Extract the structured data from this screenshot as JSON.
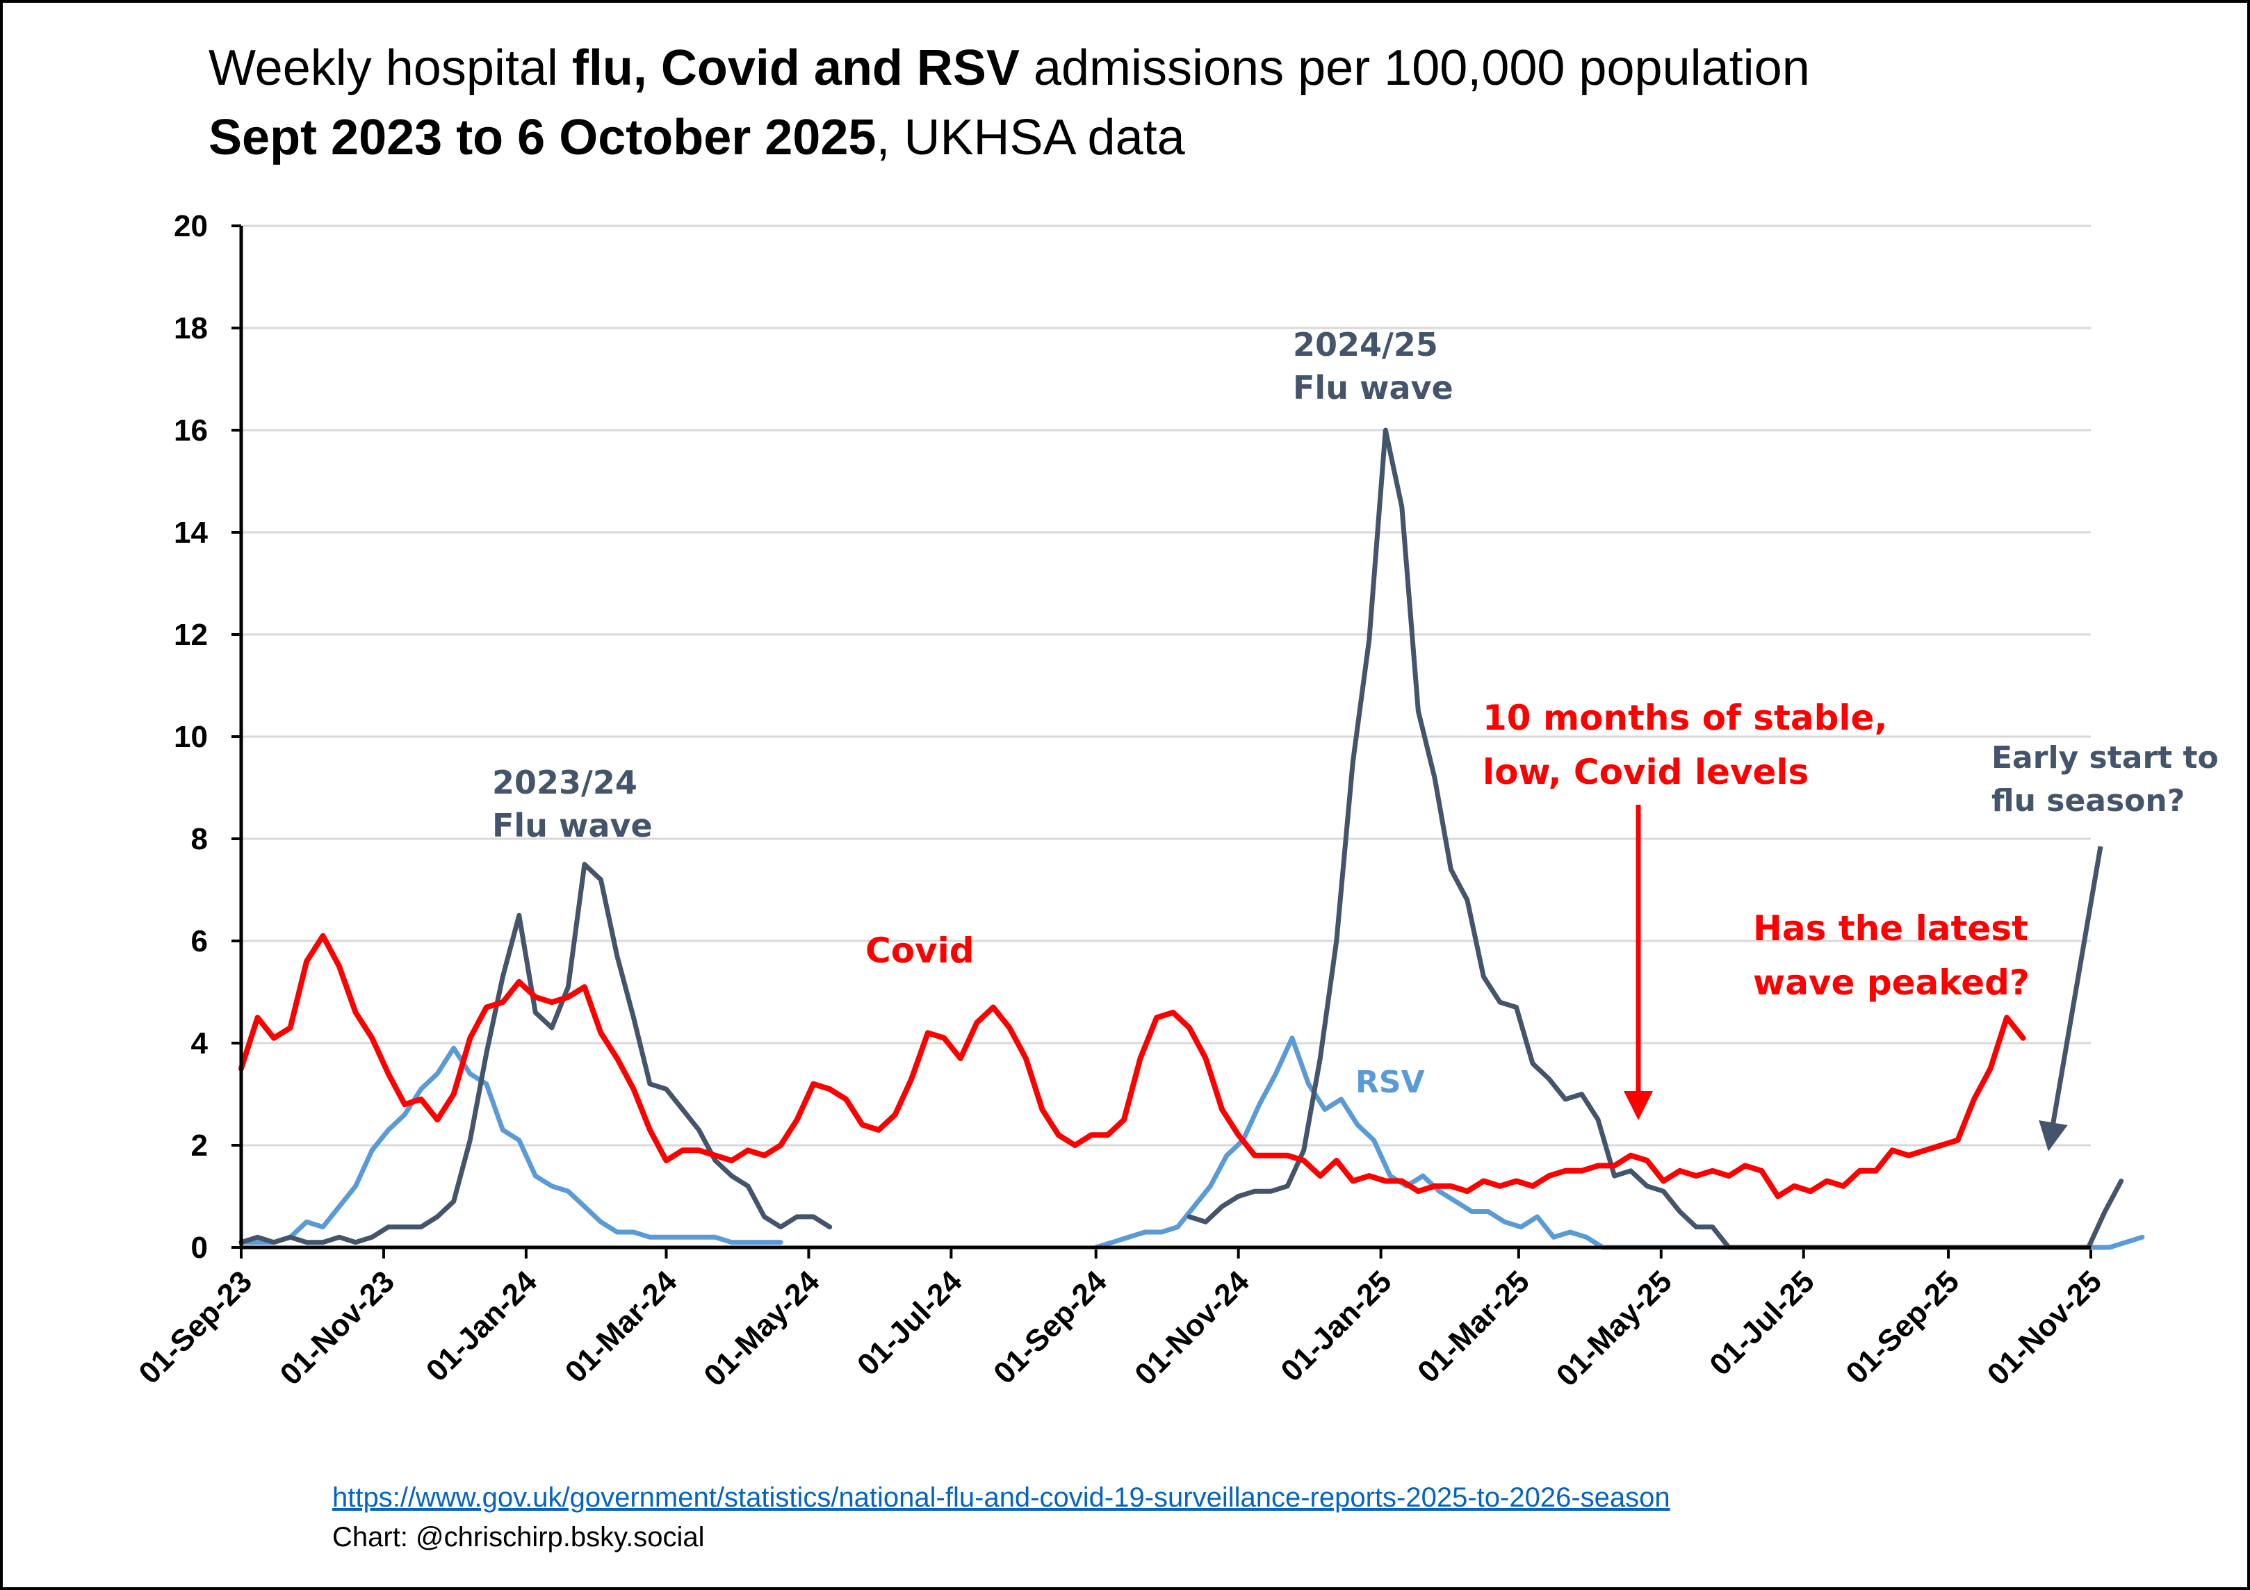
{
  "title": {
    "line1_a": "Weekly hospital ",
    "line1_b": "flu, Covid and RSV",
    "line1_c": " admissions per 100,000 population",
    "line2_a": "Sept 2023 to 6 October 2025",
    "line2_b": ", UKHSA data"
  },
  "source_url": "https://www.gov.uk/government/statistics/national-flu-and-covid-19-surveillance-reports-2025-to-2026-season",
  "credit": "Chart: @chrischirp.bsky.social",
  "colors": {
    "covid": "#ff0000",
    "flu": "#44546a",
    "rsv": "#5b9bd5",
    "grid": "#d9d9d9",
    "axis": "#000000"
  },
  "annotations": {
    "flu_2324": [
      "2023/24",
      "Flu wave"
    ],
    "flu_2425": [
      "2024/25",
      "Flu wave"
    ],
    "covid": "Covid",
    "rsv": "RSV",
    "stable": [
      "10 months of stable,",
      "low, Covid levels"
    ],
    "peaked": [
      "Has the latest",
      "wave peaked?"
    ],
    "early": [
      "Early start to",
      "flu season?"
    ]
  },
  "chart_data": {
    "type": "line",
    "x_axis": {
      "type": "date",
      "min": "2023-09-01",
      "max": "2025-11-01",
      "ticks": [
        "01-Sep-23",
        "01-Nov-23",
        "01-Jan-24",
        "01-Mar-24",
        "01-May-24",
        "01-Jul-24",
        "01-Sep-24",
        "01-Nov-24",
        "01-Jan-25",
        "01-Mar-25",
        "01-May-25",
        "01-Jul-25",
        "01-Sep-25",
        "01-Nov-25"
      ]
    },
    "y_axis": {
      "min": 0,
      "max": 20,
      "ticks": [
        0,
        2,
        4,
        6,
        8,
        10,
        12,
        14,
        16,
        18,
        20
      ],
      "grid": true
    },
    "series": [
      {
        "key": "covid",
        "start": "2023-09-01",
        "interval_days": 7,
        "values": [
          3.5,
          4.5,
          4.1,
          4.3,
          5.6,
          6.1,
          5.5,
          4.6,
          4.1,
          3.4,
          2.8,
          2.9,
          2.5,
          3.0,
          4.1,
          4.7,
          4.8,
          5.2,
          4.9,
          4.8,
          4.9,
          5.1,
          4.2,
          3.7,
          3.1,
          2.3,
          1.7,
          1.9,
          1.9,
          1.8,
          1.7,
          1.9,
          1.8,
          2.0,
          2.5,
          3.2,
          3.1,
          2.9,
          2.4,
          2.3,
          2.6,
          3.3,
          4.2,
          4.1,
          3.7,
          4.4,
          4.7,
          4.3,
          3.7,
          2.7,
          2.2,
          2.0,
          2.2,
          2.2,
          2.5,
          3.7,
          4.5,
          4.6,
          4.3,
          3.7,
          2.7,
          2.2,
          1.8,
          1.8,
          1.8,
          1.7,
          1.4,
          1.7,
          1.3,
          1.4,
          1.3,
          1.3,
          1.1,
          1.2,
          1.2,
          1.1,
          1.3,
          1.2,
          1.3,
          1.2,
          1.4,
          1.5,
          1.5,
          1.6,
          1.6,
          1.8,
          1.7,
          1.3,
          1.5,
          1.4,
          1.5,
          1.4,
          1.6,
          1.5,
          1.0,
          1.2,
          1.1,
          1.3,
          1.2,
          1.5,
          1.5,
          1.9,
          1.8,
          1.9,
          2.0,
          2.1,
          2.9,
          3.5,
          4.5,
          4.1
        ]
      },
      {
        "key": "flu",
        "segments": [
          {
            "start": "2023-09-01",
            "interval_days": 7,
            "values": [
              0.1,
              0.2,
              0.1,
              0.2,
              0.1,
              0.1,
              0.2,
              0.1,
              0.2,
              0.4,
              0.4,
              0.4,
              0.6,
              0.9,
              2.1,
              3.8,
              5.3,
              6.5,
              4.6,
              4.3,
              5.1,
              7.5,
              7.2,
              5.7,
              4.5,
              3.2,
              3.1,
              2.7,
              2.3,
              1.7,
              1.4,
              1.2,
              0.6,
              0.4,
              0.6,
              0.6,
              0.4
            ]
          },
          {
            "start": "2024-10-11",
            "interval_days": 7,
            "values": [
              0.6,
              0.5,
              0.8,
              1.0,
              1.1,
              1.1,
              1.2,
              1.9,
              3.7,
              6.0,
              9.5,
              11.9,
              16.0,
              14.5,
              10.5,
              9.2,
              7.4,
              6.8,
              5.3,
              4.8,
              4.7,
              3.6,
              3.3,
              2.9,
              3.0,
              2.5,
              1.4,
              1.5,
              1.2,
              1.1,
              0.7,
              0.4,
              0.4,
              0.0,
              0.0,
              0.0,
              0.0,
              0.0,
              0.0,
              0.0,
              0.0,
              0.0,
              0.0,
              0.0,
              0.0,
              0.0,
              0.0,
              0.0,
              0.0,
              0.0,
              0.0,
              0.0,
              0.0,
              0.0,
              0.0,
              0.0,
              0.7,
              1.3
            ]
          }
        ]
      },
      {
        "key": "rsv",
        "segments": [
          {
            "start": "2023-09-01",
            "interval_days": 7,
            "values": [
              0.1,
              0.1,
              0.1,
              0.2,
              0.5,
              0.4,
              0.8,
              1.2,
              1.9,
              2.3,
              2.6,
              3.1,
              3.4,
              3.9,
              3.4,
              3.2,
              2.3,
              2.1,
              1.4,
              1.2,
              1.1,
              0.8,
              0.5,
              0.3,
              0.3,
              0.2,
              0.2,
              0.2,
              0.2,
              0.2,
              0.1,
              0.1,
              0.1,
              0.1
            ]
          },
          {
            "start": "2024-09-01",
            "interval_days": 7,
            "values": [
              0.0,
              0.1,
              0.2,
              0.3,
              0.3,
              0.4,
              0.8,
              1.2,
              1.8,
              2.1,
              2.8,
              3.4,
              4.1,
              3.2,
              2.7,
              2.9,
              2.4,
              2.1,
              1.4,
              1.2,
              1.4,
              1.1,
              0.9,
              0.7,
              0.7,
              0.5,
              0.4,
              0.6,
              0.2,
              0.3,
              0.2,
              0.0,
              0.0,
              0.0,
              0.0,
              0.0,
              0.0,
              0.0,
              0.0,
              0.0,
              0.0,
              0.0,
              0.0,
              0.0,
              0.0,
              0.0,
              0.0,
              0.0,
              0.0,
              0.0,
              0.0,
              0.0,
              0.0,
              0.0,
              0.0,
              0.0,
              0.0,
              0.0,
              0.0,
              0.0,
              0.0,
              0.0,
              0.0,
              0.1,
              0.2
            ]
          }
        ]
      }
    ]
  }
}
